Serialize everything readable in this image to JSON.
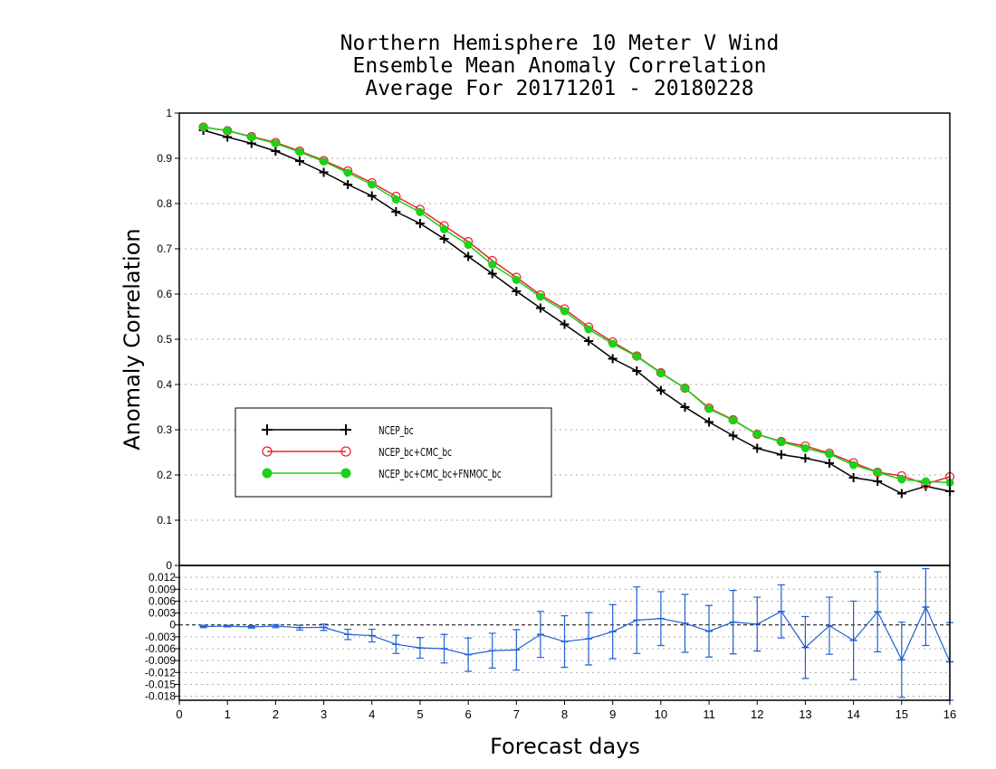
{
  "chart_data": [
    {
      "type": "line",
      "title": [
        "Northern Hemisphere 10 Meter V Wind",
        "Ensemble Mean Anomaly Correlation",
        "Average For 20171201 - 20180228"
      ],
      "ylabel": "Anomaly Correlation",
      "xlabel": "Forecast days",
      "xlim": [
        0,
        16
      ],
      "ylim": [
        0,
        1
      ],
      "x_ticks": [
        "0",
        "1",
        "2",
        "3",
        "4",
        "5",
        "6",
        "7",
        "8",
        "9",
        "10",
        "11",
        "12",
        "13",
        "14",
        "15",
        "16"
      ],
      "y_ticks": [
        "0",
        "0.1",
        "0.2",
        "0.3",
        "0.4",
        "0.5",
        "0.6",
        "0.7",
        "0.8",
        "0.9",
        "1"
      ],
      "grid": true,
      "legend_position": "lower-left",
      "x": [
        0.5,
        1,
        1.5,
        2,
        2.5,
        3,
        3.5,
        4,
        4.5,
        5,
        5.5,
        6,
        6.5,
        7,
        7.5,
        8,
        8.5,
        9,
        9.5,
        10,
        10.5,
        11,
        11.5,
        12,
        12.5,
        13,
        13.5,
        14,
        14.5,
        15,
        15.5,
        16
      ],
      "series": [
        {
          "name": "NCEP_bc",
          "color": "#000000",
          "marker": "plus",
          "values": [
            0.962,
            0.947,
            0.933,
            0.916,
            0.894,
            0.869,
            0.842,
            0.817,
            0.782,
            0.756,
            0.722,
            0.683,
            0.645,
            0.606,
            0.569,
            0.533,
            0.496,
            0.457,
            0.43,
            0.387,
            0.35,
            0.317,
            0.287,
            0.259,
            0.245,
            0.237,
            0.226,
            0.194,
            0.186,
            0.159,
            0.175,
            0.164
          ]
        },
        {
          "name": "NCEP_bc+CMC_bc",
          "color": "#e8262c",
          "marker": "open-circle",
          "values": [
            0.969,
            0.961,
            0.948,
            0.935,
            0.916,
            0.895,
            0.872,
            0.846,
            0.816,
            0.787,
            0.751,
            0.716,
            0.674,
            0.637,
            0.598,
            0.567,
            0.527,
            0.494,
            0.463,
            0.426,
            0.392,
            0.348,
            0.322,
            0.29,
            0.274,
            0.264,
            0.248,
            0.227,
            0.206,
            0.198,
            0.18,
            0.196
          ]
        },
        {
          "name": "NCEP_bc+CMC_bc+FNMOC_bc",
          "color": "#19d219",
          "marker": "filled-circle",
          "values": [
            0.969,
            0.961,
            0.947,
            0.933,
            0.914,
            0.893,
            0.868,
            0.842,
            0.809,
            0.781,
            0.743,
            0.709,
            0.665,
            0.631,
            0.594,
            0.562,
            0.522,
            0.49,
            0.462,
            0.425,
            0.392,
            0.346,
            0.321,
            0.29,
            0.273,
            0.259,
            0.246,
            0.222,
            0.206,
            0.19,
            0.186,
            0.183
          ]
        }
      ]
    },
    {
      "type": "line",
      "title": "",
      "ylabel": "",
      "xlabel": "Forecast days",
      "xlim": [
        0,
        16
      ],
      "ylim": [
        -0.019,
        0.015
      ],
      "y_ticks": [
        "0.012",
        "0.009",
        "0.006",
        "0.003",
        "0",
        "-0.003",
        "-0.006",
        "-0.009",
        "-0.012",
        "-0.015",
        "-0.018"
      ],
      "grid": true,
      "series": [
        {
          "name": "",
          "color": "#1f5fd6",
          "marker": "error-bar",
          "x": [
            0.5,
            1,
            1.5,
            2,
            2.5,
            3,
            3.5,
            4,
            4.5,
            5,
            5.5,
            6,
            6.5,
            7,
            7.5,
            8,
            8.5,
            9,
            9.5,
            10,
            10.5,
            11,
            11.5,
            12,
            12.5,
            13,
            13.5,
            14,
            14.5,
            15,
            15.5,
            16
          ],
          "values": [
            -0.0004,
            -0.0003,
            -0.0005,
            -0.0003,
            -0.0007,
            -0.0006,
            -0.0024,
            -0.0027,
            -0.0049,
            -0.0058,
            -0.006,
            -0.0075,
            -0.0065,
            -0.0063,
            -0.0024,
            -0.0042,
            -0.0035,
            -0.0017,
            0.0012,
            0.0016,
            0.0004,
            -0.0016,
            0.0007,
            0.0002,
            0.0034,
            -0.0057,
            -0.0002,
            -0.0039,
            0.0033,
            -0.0088,
            0.0045,
            -0.0093
          ],
          "error": [
            0.0003,
            0.0002,
            0.0003,
            0.0004,
            0.0006,
            0.0008,
            0.0013,
            0.0016,
            0.0023,
            0.0026,
            0.0036,
            0.0042,
            0.0044,
            0.0051,
            0.0058,
            0.0065,
            0.0066,
            0.0068,
            0.0084,
            0.0068,
            0.0073,
            0.0065,
            0.008,
            0.0068,
            0.0067,
            0.0078,
            0.0072,
            0.0099,
            0.0101,
            0.0095,
            0.0097,
            0.0099
          ]
        }
      ]
    }
  ]
}
